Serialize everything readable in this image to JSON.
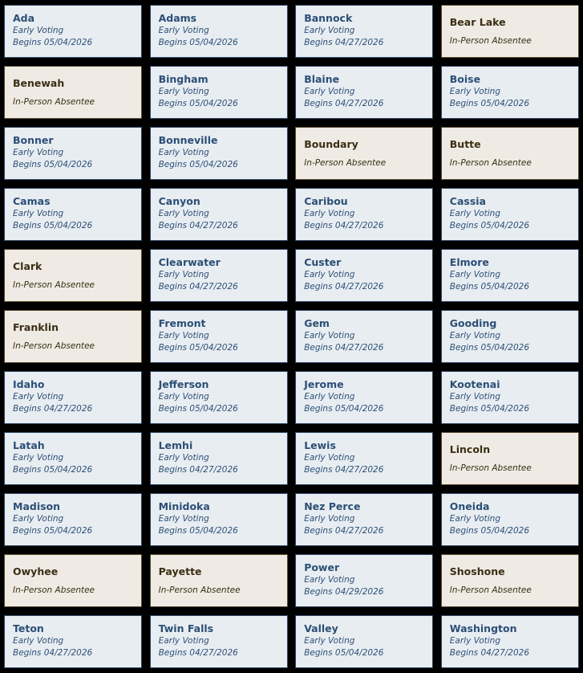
{
  "colors": {
    "early_bg": "#e8edf2",
    "early_text": "#2b4f75",
    "absentee_bg": "#efebe4",
    "absentee_text": "#3a2e14",
    "page_bg": "#000000"
  },
  "counties": [
    {
      "name": "Ada",
      "type": "Early Voting",
      "date": "Begins 05/04/2026"
    },
    {
      "name": "Adams",
      "type": "Early Voting",
      "date": "Begins 05/04/2026"
    },
    {
      "name": "Bannock",
      "type": "Early Voting",
      "date": "Begins 04/27/2026"
    },
    {
      "name": "Bear Lake",
      "type": "In-Person Absentee"
    },
    {
      "name": "Benewah",
      "type": "In-Person Absentee"
    },
    {
      "name": "Bingham",
      "type": "Early Voting",
      "date": "Begins 05/04/2026"
    },
    {
      "name": "Blaine",
      "type": "Early Voting",
      "date": "Begins 04/27/2026"
    },
    {
      "name": "Boise",
      "type": "Early Voting",
      "date": "Begins 05/04/2026"
    },
    {
      "name": "Bonner",
      "type": "Early Voting",
      "date": "Begins 05/04/2026"
    },
    {
      "name": "Bonneville",
      "type": "Early Voting",
      "date": "Begins 05/04/2026"
    },
    {
      "name": "Boundary",
      "type": "In-Person Absentee"
    },
    {
      "name": "Butte",
      "type": "In-Person Absentee"
    },
    {
      "name": "Camas",
      "type": "Early Voting",
      "date": "Begins 05/04/2026"
    },
    {
      "name": "Canyon",
      "type": "Early Voting",
      "date": "Begins 04/27/2026"
    },
    {
      "name": "Caribou",
      "type": "Early Voting",
      "date": "Begins 04/27/2026"
    },
    {
      "name": "Cassia",
      "type": "Early Voting",
      "date": "Begins 05/04/2026"
    },
    {
      "name": "Clark",
      "type": "In-Person Absentee"
    },
    {
      "name": "Clearwater",
      "type": "Early Voting",
      "date": "Begins 04/27/2026"
    },
    {
      "name": "Custer",
      "type": "Early Voting",
      "date": "Begins 04/27/2026"
    },
    {
      "name": "Elmore",
      "type": "Early Voting",
      "date": "Begins 05/04/2026"
    },
    {
      "name": "Franklin",
      "type": "In-Person Absentee"
    },
    {
      "name": "Fremont",
      "type": "Early Voting",
      "date": "Begins 05/04/2026"
    },
    {
      "name": "Gem",
      "type": "Early Voting",
      "date": "Begins 04/27/2026"
    },
    {
      "name": "Gooding",
      "type": "Early Voting",
      "date": "Begins 05/04/2026"
    },
    {
      "name": "Idaho",
      "type": "Early Voting",
      "date": "Begins 04/27/2026"
    },
    {
      "name": "Jefferson",
      "type": "Early Voting",
      "date": "Begins 05/04/2026"
    },
    {
      "name": "Jerome",
      "type": "Early Voting",
      "date": "Begins 05/04/2026"
    },
    {
      "name": "Kootenai",
      "type": "Early Voting",
      "date": "Begins 05/04/2026"
    },
    {
      "name": "Latah",
      "type": "Early Voting",
      "date": "Begins 05/04/2026"
    },
    {
      "name": "Lemhi",
      "type": "Early Voting",
      "date": "Begins 04/27/2026"
    },
    {
      "name": "Lewis",
      "type": "Early Voting",
      "date": "Begins 04/27/2026"
    },
    {
      "name": "Lincoln",
      "type": "In-Person Absentee"
    },
    {
      "name": "Madison",
      "type": "Early Voting",
      "date": "Begins 05/04/2026"
    },
    {
      "name": "Minidoka",
      "type": "Early Voting",
      "date": "Begins 05/04/2026"
    },
    {
      "name": "Nez Perce",
      "type": "Early Voting",
      "date": "Begins 04/27/2026"
    },
    {
      "name": "Oneida",
      "type": "Early Voting",
      "date": "Begins 05/04/2026"
    },
    {
      "name": "Owyhee",
      "type": "In-Person Absentee"
    },
    {
      "name": "Payette",
      "type": "In-Person Absentee"
    },
    {
      "name": "Power",
      "type": "Early Voting",
      "date": "Begins 04/29/2026"
    },
    {
      "name": "Shoshone",
      "type": "In-Person Absentee"
    },
    {
      "name": "Teton",
      "type": "Early Voting",
      "date": "Begins 04/27/2026"
    },
    {
      "name": "Twin Falls",
      "type": "Early Voting",
      "date": "Begins 04/27/2026"
    },
    {
      "name": "Valley",
      "type": "Early Voting",
      "date": "Begins 05/04/2026"
    },
    {
      "name": "Washington",
      "type": "Early Voting",
      "date": "Begins 04/27/2026"
    }
  ]
}
